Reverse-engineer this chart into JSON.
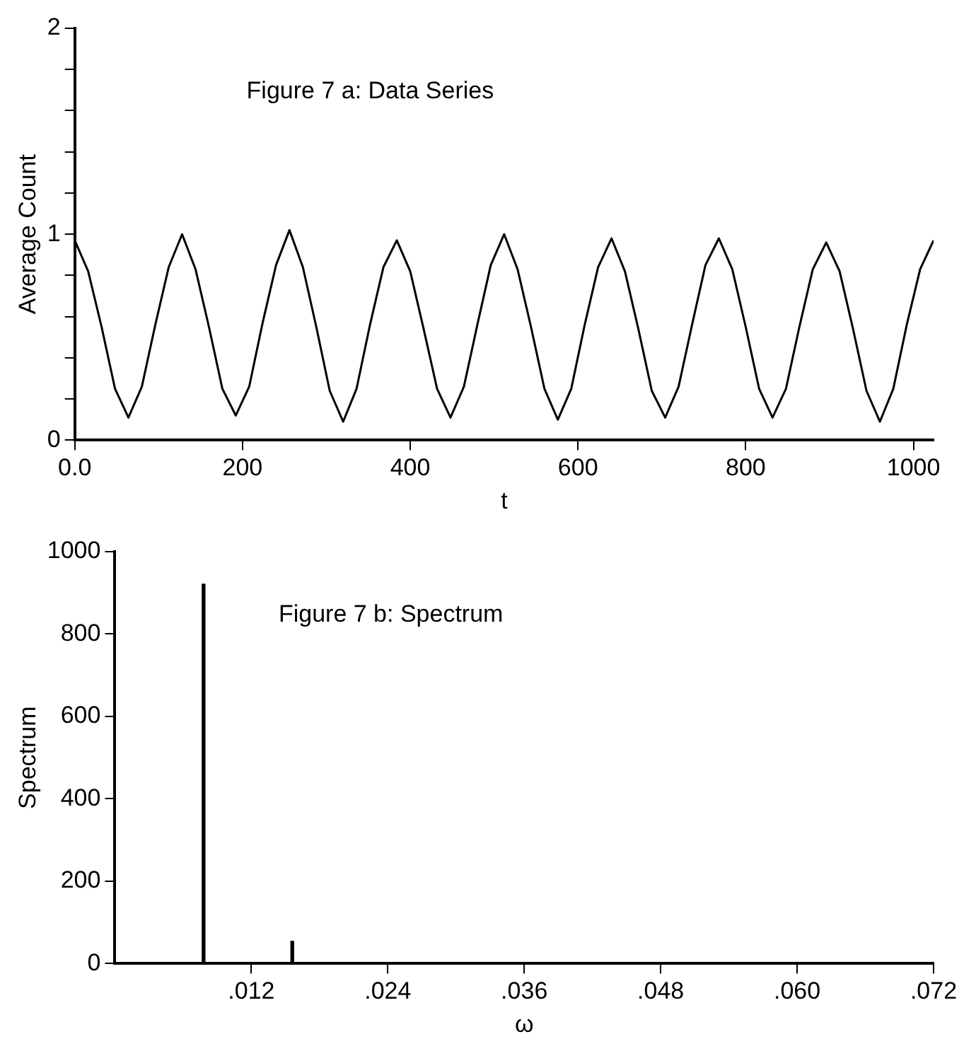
{
  "chart_data": [
    {
      "type": "line",
      "title": "Figure 7 a: Data Series",
      "xlabel": "t",
      "ylabel": "Average Count",
      "x": [
        0,
        16,
        32,
        48,
        64,
        80,
        96,
        112,
        128,
        144,
        160,
        176,
        192,
        208,
        224,
        240,
        256,
        272,
        288,
        304,
        320,
        336,
        352,
        368,
        384,
        400,
        416,
        432,
        448,
        464,
        480,
        496,
        512,
        528,
        544,
        560,
        576,
        592,
        608,
        624,
        640,
        656,
        672,
        688,
        704,
        720,
        736,
        752,
        768,
        784,
        800,
        816,
        832,
        848,
        864,
        880,
        896,
        912,
        928,
        944,
        960,
        976,
        992,
        1008,
        1024
      ],
      "series": [
        {
          "color": "#000000",
          "values": [
            0.97,
            0.82,
            0.55,
            0.25,
            0.11,
            0.26,
            0.56,
            0.84,
            1.0,
            0.83,
            0.55,
            0.25,
            0.12,
            0.26,
            0.57,
            0.85,
            1.02,
            0.84,
            0.55,
            0.24,
            0.09,
            0.25,
            0.56,
            0.84,
            0.97,
            0.82,
            0.54,
            0.25,
            0.11,
            0.26,
            0.56,
            0.85,
            1.0,
            0.83,
            0.55,
            0.25,
            0.1,
            0.25,
            0.56,
            0.84,
            0.98,
            0.82,
            0.54,
            0.24,
            0.11,
            0.26,
            0.56,
            0.85,
            0.98,
            0.83,
            0.55,
            0.25,
            0.11,
            0.25,
            0.55,
            0.83,
            0.96,
            0.82,
            0.54,
            0.24,
            0.09,
            0.25,
            0.56,
            0.83,
            0.97
          ]
        }
      ],
      "xlim": [
        0,
        1024
      ],
      "xticks": [
        {
          "value": 0,
          "label": "0.0"
        },
        200,
        400,
        600,
        800,
        1000
      ],
      "ylim": [
        0,
        2
      ],
      "yticks": [
        0,
        {
          "value": 0.2,
          "label": null
        },
        {
          "value": 0.4,
          "label": null
        },
        {
          "value": 0.6,
          "label": null
        },
        {
          "value": 0.8,
          "label": null
        },
        1,
        {
          "value": 1.2,
          "label": null
        },
        {
          "value": 1.4,
          "label": null
        },
        {
          "value": 1.6,
          "label": null
        },
        {
          "value": 1.8,
          "label": null
        },
        2
      ],
      "grid": false,
      "legend": false,
      "marker": "none",
      "line_style": "solid"
    },
    {
      "type": "bar",
      "title": "Figure 7 b: Spectrum",
      "xlabel": "ω",
      "ylabel": "Spectrum",
      "x": [
        0.0078,
        0.0156
      ],
      "series": [
        {
          "color": "#000000",
          "values": [
            921,
            54
          ]
        }
      ],
      "xlim": [
        0,
        0.072
      ],
      "xticks": [
        {
          "value": 0.012,
          "label": ".012"
        },
        {
          "value": 0.024,
          "label": ".024"
        },
        {
          "value": 0.036,
          "label": ".036"
        },
        {
          "value": 0.048,
          "label": ".048"
        },
        {
          "value": 0.06,
          "label": ".060"
        },
        {
          "value": 0.072,
          "label": ".072"
        }
      ],
      "ylim": [
        0,
        1000
      ],
      "yticks": [
        0,
        200,
        400,
        600,
        800,
        1000
      ],
      "grid": false,
      "legend": false
    }
  ]
}
